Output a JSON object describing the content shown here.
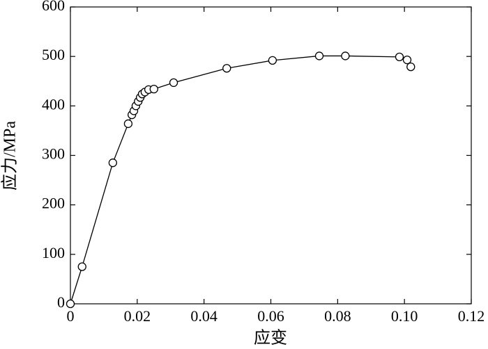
{
  "chart_data": {
    "type": "line",
    "xlabel": "应变",
    "ylabel": "应力/MPa",
    "xlim": [
      0,
      0.12
    ],
    "ylim": [
      0,
      600
    ],
    "xticks": [
      0,
      0.02,
      0.04,
      0.06,
      0.08,
      {
        "value": 0.1,
        "label": "0.10"
      },
      0.12
    ],
    "yticks": [
      0,
      100,
      200,
      300,
      400,
      500,
      600
    ],
    "series": [
      {
        "color": "#000000",
        "x": [
          0,
          0.0035,
          0.0127,
          0.0173,
          0.0184,
          0.019,
          0.0196,
          0.0203,
          0.0209,
          0.0215,
          0.0223,
          0.0234,
          0.025,
          0.0309,
          0.0468,
          0.0605,
          0.0745,
          0.0823,
          0.0985,
          0.1008,
          0.1019
        ],
        "values": [
          0,
          75,
          285,
          364,
          382,
          390,
          400,
          409,
          417,
          424,
          428,
          433,
          434,
          447,
          476,
          492,
          501,
          501,
          499,
          493,
          479
        ]
      }
    ]
  }
}
